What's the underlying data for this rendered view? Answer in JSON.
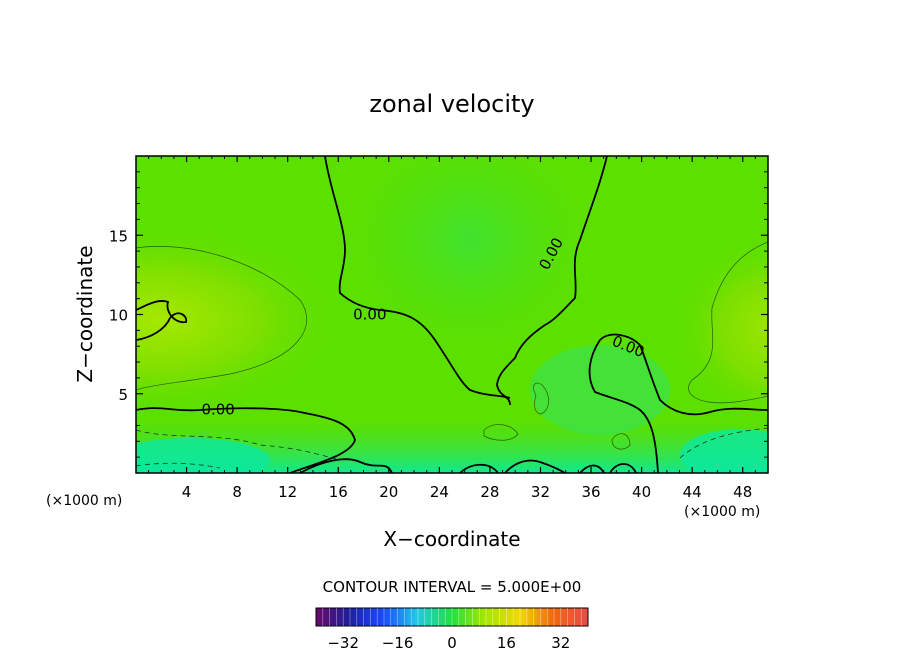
{
  "chart_data": {
    "type": "heatmap",
    "title": "zonal velocity",
    "xlabel": "X−coordinate",
    "ylabel": "Z−coordinate",
    "x_unit_left": "(×1000 m)",
    "x_unit_right": "(×1000 m)",
    "xlim": [
      0,
      50
    ],
    "ylim": [
      0,
      20
    ],
    "xticks": [
      4,
      8,
      12,
      16,
      20,
      24,
      28,
      32,
      36,
      40,
      44,
      48
    ],
    "xtick_labels": [
      "4",
      "8",
      "12",
      "16",
      "20",
      "24",
      "28",
      "32",
      "36",
      "40",
      "44",
      "48"
    ],
    "yticks": [
      5,
      10,
      15
    ],
    "ytick_labels": [
      "5",
      "10",
      "15"
    ],
    "contour_labels": [
      {
        "text": "0.00",
        "x": 18.5,
        "z": 10.0
      },
      {
        "text": "0.00",
        "x": 6.5,
        "z": 4.0
      },
      {
        "text": "0.00",
        "x": 33.2,
        "z": 14.0
      },
      {
        "text": "0.00",
        "x": 38.8,
        "z": 8.0
      }
    ],
    "contour_interval_text": "CONTOUR INTERVAL =  5.000E+00",
    "colorbar": {
      "range": [
        -40,
        40
      ],
      "tick_values": [
        -32,
        -16,
        0,
        16,
        32
      ],
      "tick_labels": [
        "−32",
        "−16",
        "0",
        "16",
        "32"
      ]
    }
  }
}
